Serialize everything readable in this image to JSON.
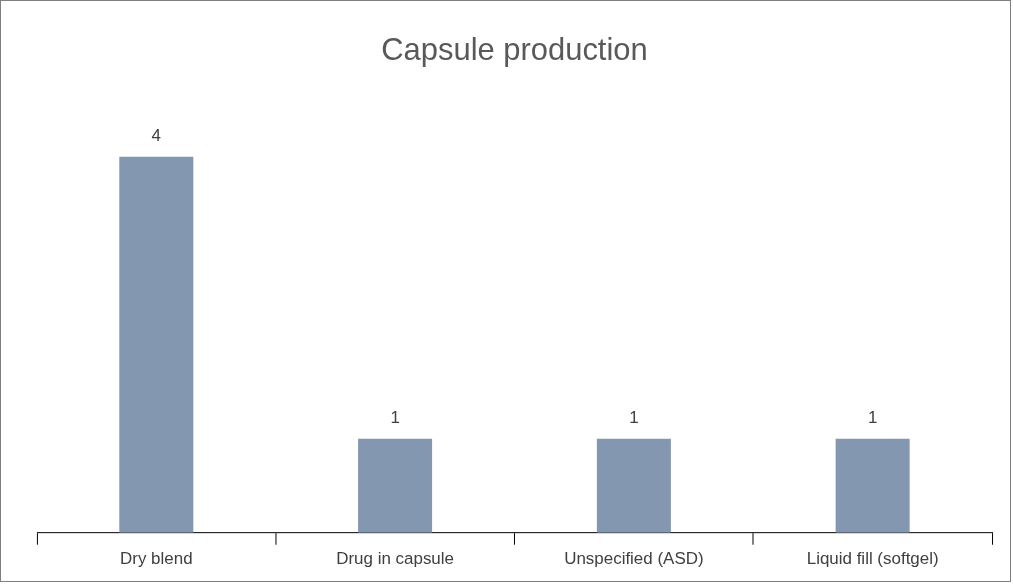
{
  "chart_data": {
    "type": "bar",
    "title": "Capsule production",
    "categories": [
      "Dry blend",
      "Drug in capsule",
      "Unspecified (ASD)",
      "Liquid fill (softgel)"
    ],
    "values": [
      4,
      1,
      1,
      1
    ],
    "color": "#8497b0",
    "data_labels": true
  }
}
